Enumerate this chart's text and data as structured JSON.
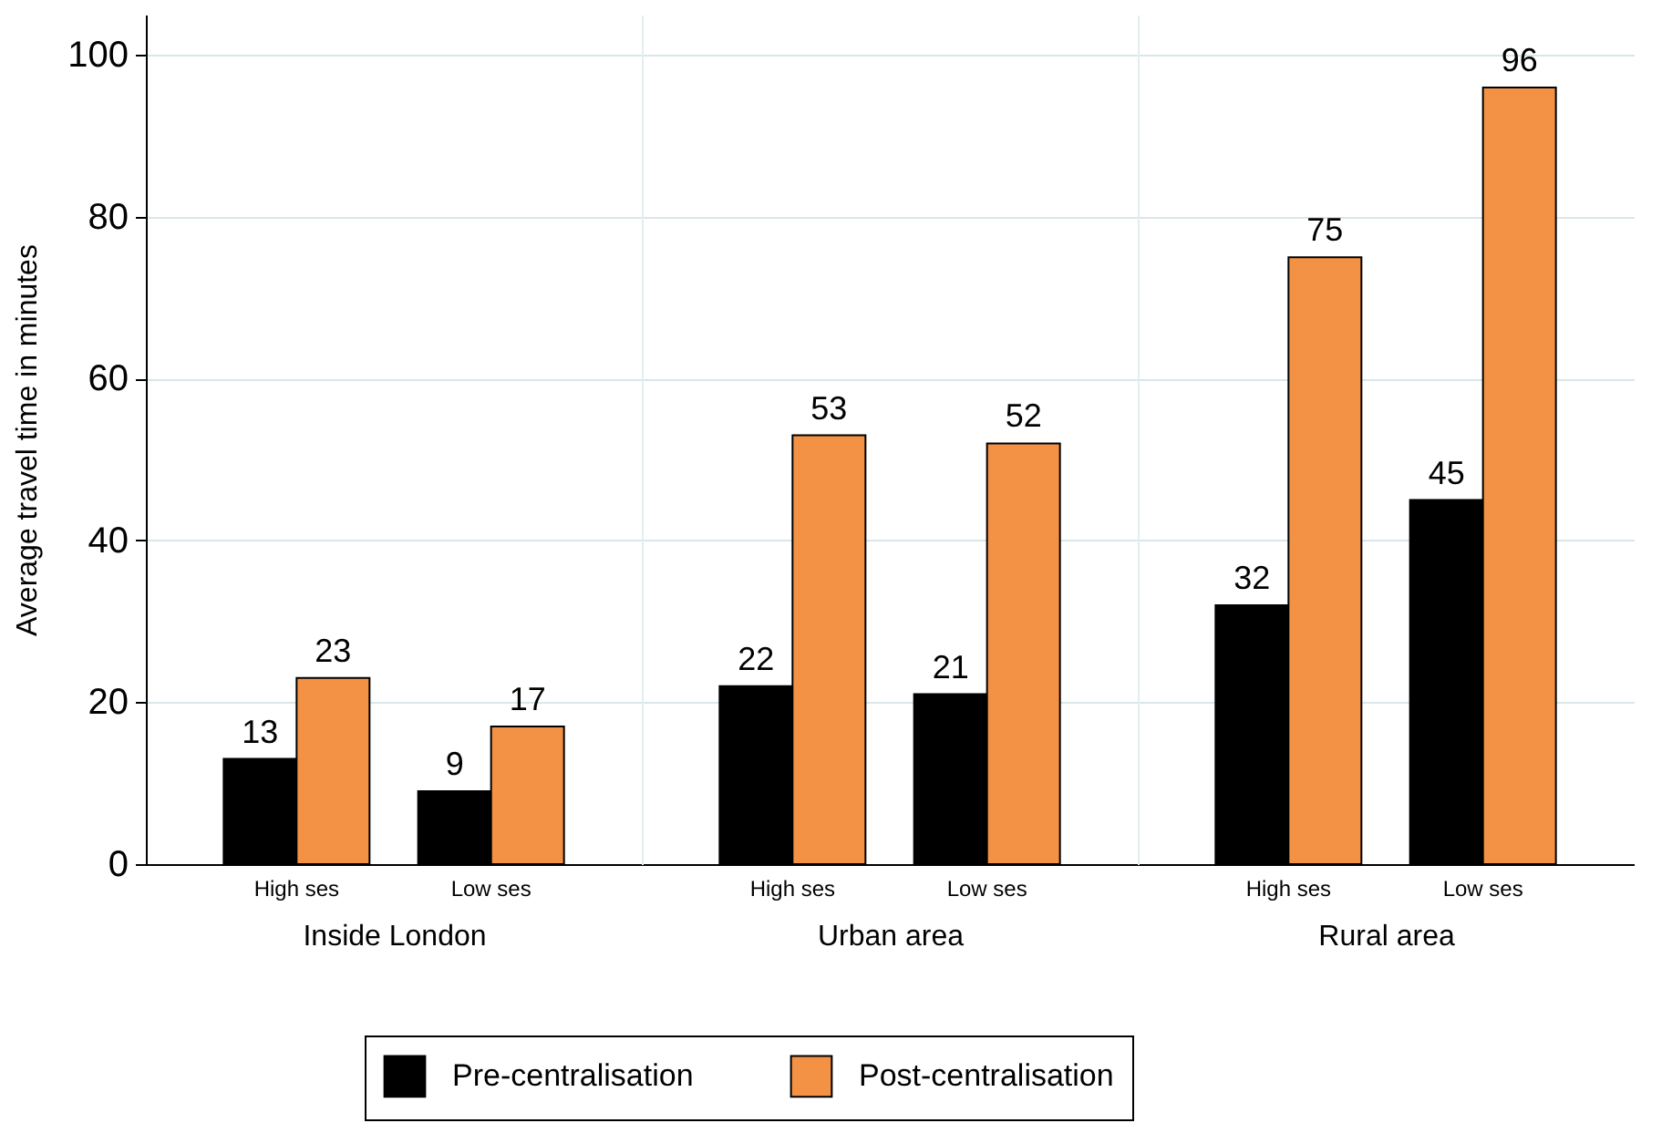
{
  "chart_data": [
    {
      "type": "bar",
      "xlabel": "Inside London",
      "ylabel": "Average travel time in minutes",
      "categories": [
        "High ses",
        "Low ses"
      ],
      "series": [
        {
          "name": "Pre-centralisation",
          "color": "#000000",
          "values": [
            13,
            9
          ]
        },
        {
          "name": "Post-centralisation",
          "color": "#f39244",
          "values": [
            23,
            17
          ]
        }
      ],
      "ylim": [
        0,
        105
      ],
      "yticks": [
        0,
        20,
        40,
        60,
        80,
        100
      ],
      "grid": "y",
      "legend": "bottom",
      "data_labels": true
    },
    {
      "type": "bar",
      "xlabel": "Urban area",
      "categories": [
        "High ses",
        "Low ses"
      ],
      "series": [
        {
          "name": "Pre-centralisation",
          "color": "#000000",
          "values": [
            22,
            21
          ]
        },
        {
          "name": "Post-centralisation",
          "color": "#f39244",
          "values": [
            53,
            52
          ]
        }
      ],
      "ylim": [
        0,
        105
      ],
      "yticks": [
        0,
        20,
        40,
        60,
        80,
        100
      ],
      "grid": "y",
      "legend": "bottom",
      "data_labels": true,
      "tick_labels": "x"
    },
    {
      "type": "bar",
      "xlabel": "Rural area",
      "categories": [
        "High ses",
        "Low ses"
      ],
      "series": [
        {
          "name": "Pre-centralisation",
          "color": "#000000",
          "values": [
            32,
            45
          ]
        },
        {
          "name": "Post-centralisation",
          "color": "#f39244",
          "values": [
            75,
            96
          ]
        }
      ],
      "ylim": [
        0,
        105
      ],
      "yticks": [
        0,
        20,
        40,
        60,
        80,
        100
      ],
      "grid": "y",
      "legend": "bottom",
      "data_labels": true,
      "tick_labels": "x"
    }
  ]
}
